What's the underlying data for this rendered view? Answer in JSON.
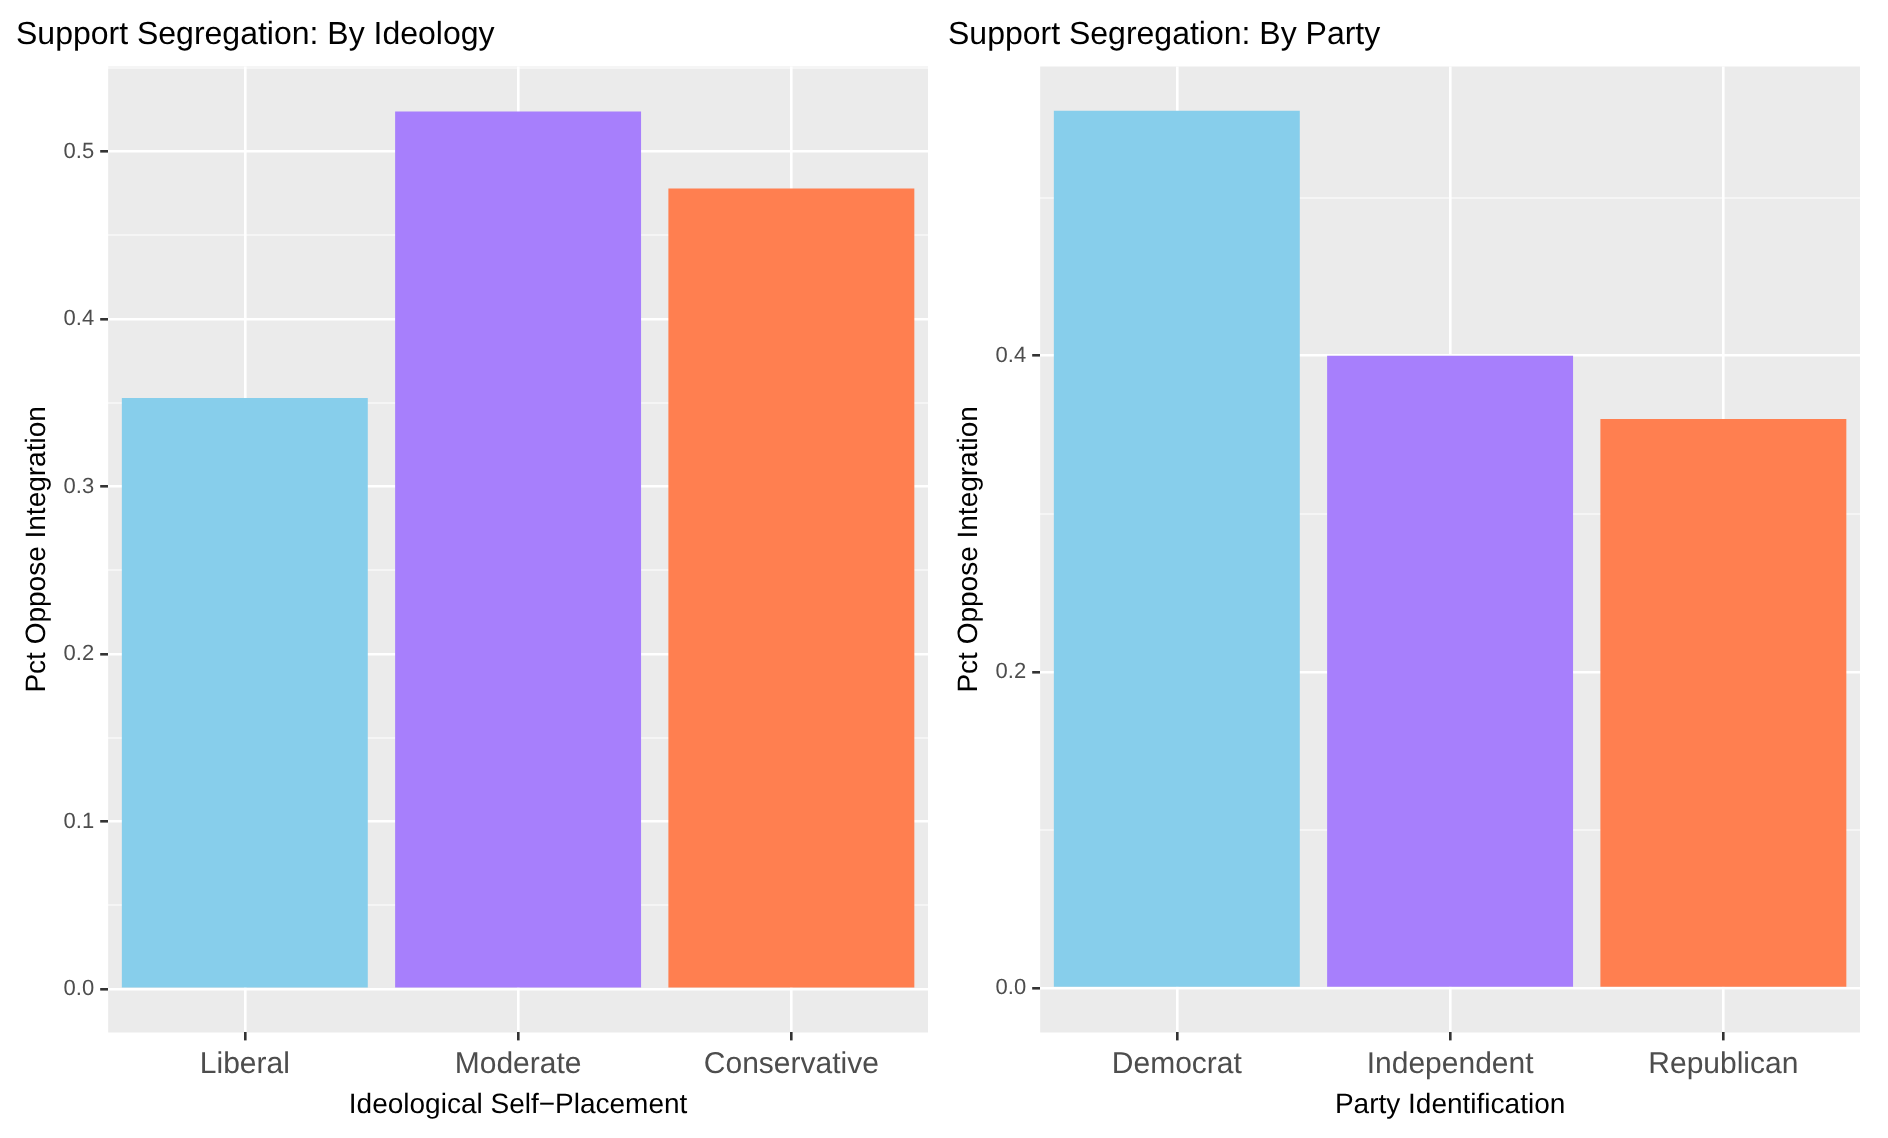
{
  "chart_data": [
    {
      "type": "bar",
      "title": "Support Segregation: By Ideology",
      "xlabel": "Ideological Self−Placement",
      "ylabel": "Pct Oppose Integration",
      "categories": [
        "Liberal",
        "Moderate",
        "Conservative"
      ],
      "values": [
        0.353,
        0.524,
        0.478
      ],
      "colors": [
        "#87ceeb",
        "#a77ffc",
        "#ff7f50"
      ],
      "ylim": [
        -0.026,
        0.551
      ],
      "yticks": [
        {
          "value": 0,
          "label": "0.0"
        },
        {
          "value": 0.05,
          "label": null
        },
        0.1,
        {
          "value": 0.15,
          "label": null
        },
        0.2,
        {
          "value": 0.25,
          "label": null
        },
        0.3,
        {
          "value": 0.35,
          "label": null
        },
        0.4,
        {
          "value": 0.45,
          "label": null
        },
        0.5,
        {
          "value": 0.55,
          "label": null
        }
      ],
      "grid": true
    },
    {
      "type": "bar",
      "title": "Support Segregation: By Party",
      "xlabel": "Party Identification",
      "ylabel": "Pct Oppose Integration",
      "categories": [
        "Democrat",
        "Independent",
        "Republican"
      ],
      "values": [
        0.555,
        0.4,
        0.36
      ],
      "colors": [
        "#87ceeb",
        "#a77ffc",
        "#ff7f50"
      ],
      "ylim": [
        -0.028,
        0.583
      ],
      "yticks": [
        {
          "value": 0,
          "label": "0.0"
        },
        {
          "value": 0.1,
          "label": null
        },
        0.2,
        {
          "value": 0.3,
          "label": null
        },
        0.4,
        {
          "value": 0.5,
          "label": null
        }
      ],
      "grid": true
    }
  ]
}
